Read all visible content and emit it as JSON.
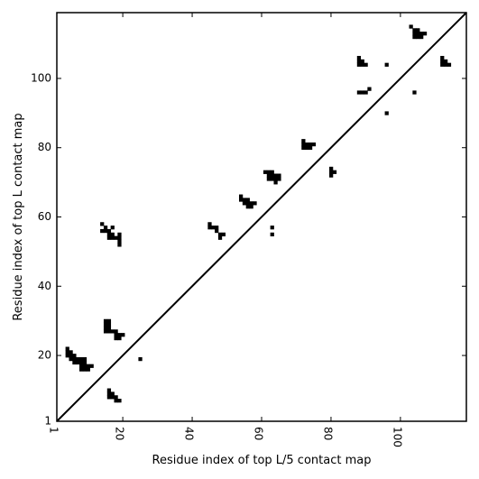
{
  "chart_data": {
    "type": "heatmap",
    "title": "",
    "xlabel": "Residue index of top L/5 contact map",
    "ylabel": "Residue index of top L contact map",
    "xlim": [
      1,
      119
    ],
    "ylim": [
      1,
      119
    ],
    "x_ticks": [
      1,
      20,
      40,
      60,
      80,
      100
    ],
    "y_ticks": [
      1,
      20,
      40,
      60,
      80,
      100
    ],
    "x_tick_labels": [
      "1",
      "20",
      "40",
      "60",
      "80",
      "100"
    ],
    "y_tick_labels": [
      "1",
      "20",
      "40",
      "60",
      "80",
      "100"
    ],
    "grid": false,
    "legend": "none",
    "diagonal_line": true,
    "color_contact": "#000000",
    "color_background": "#ffffff",
    "lower_triangle_contacts": [
      [
        4,
        22
      ],
      [
        4,
        21
      ],
      [
        4,
        20
      ],
      [
        5,
        21
      ],
      [
        5,
        20
      ],
      [
        5,
        19
      ],
      [
        6,
        20
      ],
      [
        6,
        19
      ],
      [
        6,
        18
      ],
      [
        7,
        19
      ],
      [
        7,
        18
      ],
      [
        8,
        19
      ],
      [
        8,
        18
      ],
      [
        8,
        17
      ],
      [
        8,
        16
      ],
      [
        9,
        19
      ],
      [
        9,
        18
      ],
      [
        9,
        17
      ],
      [
        9,
        16
      ],
      [
        10,
        17
      ],
      [
        10,
        16
      ],
      [
        11,
        17
      ],
      [
        15,
        30
      ],
      [
        15,
        29
      ],
      [
        15,
        28
      ],
      [
        15,
        27
      ],
      [
        16,
        30
      ],
      [
        16,
        29
      ],
      [
        16,
        28
      ],
      [
        16,
        27
      ],
      [
        17,
        27
      ],
      [
        18,
        27
      ],
      [
        18,
        26
      ],
      [
        18,
        25
      ],
      [
        19,
        26
      ],
      [
        19,
        25
      ],
      [
        20,
        26
      ],
      [
        16,
        10
      ],
      [
        16,
        9
      ],
      [
        16,
        8
      ],
      [
        17,
        9
      ],
      [
        17,
        8
      ],
      [
        18,
        8
      ],
      [
        18,
        7
      ],
      [
        19,
        7
      ],
      [
        25,
        19
      ]
    ],
    "upper_triangle_contacts": [
      [
        14,
        58
      ],
      [
        14,
        56
      ],
      [
        15,
        57
      ],
      [
        15,
        56
      ],
      [
        16,
        56
      ],
      [
        16,
        55
      ],
      [
        16,
        54
      ],
      [
        17,
        57
      ],
      [
        17,
        55
      ],
      [
        17,
        54
      ],
      [
        18,
        54
      ],
      [
        19,
        55
      ],
      [
        19,
        54
      ],
      [
        19,
        53
      ],
      [
        19,
        52
      ],
      [
        45,
        58
      ],
      [
        45,
        57
      ],
      [
        46,
        57
      ],
      [
        47,
        57
      ],
      [
        47,
        56
      ],
      [
        48,
        55
      ],
      [
        48,
        54
      ],
      [
        49,
        55
      ],
      [
        54,
        66
      ],
      [
        54,
        65
      ],
      [
        55,
        65
      ],
      [
        55,
        64
      ],
      [
        56,
        65
      ],
      [
        56,
        64
      ],
      [
        56,
        63
      ],
      [
        57,
        64
      ],
      [
        57,
        63
      ],
      [
        58,
        64
      ],
      [
        61,
        73
      ],
      [
        62,
        73
      ],
      [
        62,
        72
      ],
      [
        62,
        71
      ],
      [
        63,
        73
      ],
      [
        63,
        72
      ],
      [
        63,
        71
      ],
      [
        64,
        72
      ],
      [
        64,
        71
      ],
      [
        64,
        70
      ],
      [
        65,
        72
      ],
      [
        65,
        71
      ],
      [
        63,
        57
      ],
      [
        63,
        55
      ],
      [
        72,
        82
      ],
      [
        72,
        81
      ],
      [
        72,
        80
      ],
      [
        73,
        81
      ],
      [
        73,
        80
      ],
      [
        74,
        81
      ],
      [
        74,
        80
      ],
      [
        75,
        81
      ],
      [
        80,
        74
      ],
      [
        80,
        73
      ],
      [
        80,
        72
      ],
      [
        81,
        73
      ],
      [
        88,
        106
      ],
      [
        88,
        105
      ],
      [
        88,
        104
      ],
      [
        89,
        105
      ],
      [
        89,
        104
      ],
      [
        90,
        104
      ],
      [
        88,
        96
      ],
      [
        89,
        96
      ],
      [
        90,
        96
      ],
      [
        91,
        97
      ],
      [
        96,
        104
      ],
      [
        96,
        90
      ],
      [
        103,
        115
      ],
      [
        104,
        114
      ],
      [
        104,
        113
      ],
      [
        104,
        112
      ],
      [
        105,
        114
      ],
      [
        105,
        113
      ],
      [
        105,
        112
      ],
      [
        106,
        113
      ],
      [
        106,
        112
      ],
      [
        107,
        113
      ],
      [
        104,
        96
      ],
      [
        112,
        106
      ],
      [
        112,
        105
      ],
      [
        112,
        104
      ],
      [
        113,
        105
      ],
      [
        113,
        104
      ],
      [
        114,
        104
      ]
    ]
  }
}
